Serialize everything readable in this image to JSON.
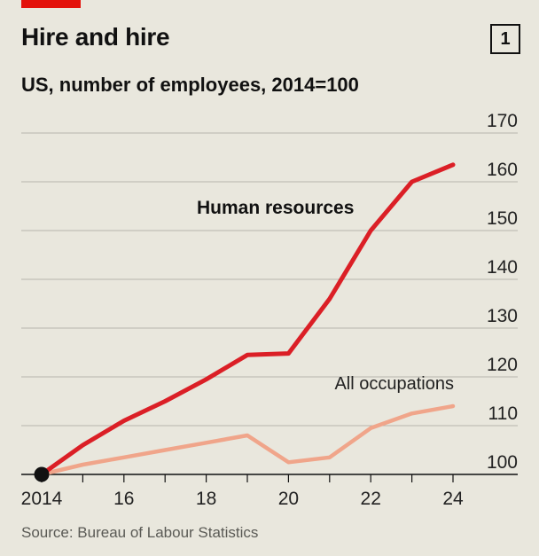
{
  "header": {
    "title": "Hire and hire",
    "chart_number": "1",
    "subtitle": "US, number of employees, 2014=100"
  },
  "footer": {
    "source": "Source: Bureau of Labour Statistics"
  },
  "colors": {
    "background": "#e9e7dd",
    "accent": "#e3120b",
    "human_resources": "#db1f26",
    "all_occupations": "#f0a58a",
    "gridline": "#b8b6ad",
    "axis": "#111111",
    "marker": "#111111"
  },
  "chart_data": {
    "type": "line",
    "title": "Hire and hire",
    "subtitle": "US, number of employees, 2014=100",
    "xlabel": "",
    "ylabel": "",
    "x": [
      2014,
      2015,
      2016,
      2017,
      2018,
      2019,
      2020,
      2021,
      2022,
      2023,
      2024
    ],
    "xlim": [
      2014,
      2024
    ],
    "ylim": [
      100,
      170
    ],
    "y_ticks": [
      100,
      110,
      120,
      130,
      140,
      150,
      160,
      170
    ],
    "y_tick_labels": [
      "100",
      "110",
      "120",
      "130",
      "140",
      "150",
      "160",
      "170"
    ],
    "x_ticks": [
      2014,
      2016,
      2018,
      2020,
      2022,
      2024
    ],
    "x_tick_labels": [
      "2014",
      "16",
      "18",
      "20",
      "22",
      "24"
    ],
    "grid": true,
    "base_marker": {
      "x": 2014,
      "y": 100
    },
    "series": [
      {
        "name": "Human resources",
        "values": [
          100,
          106,
          111,
          115,
          119.5,
          124.5,
          124.8,
          136,
          150,
          160,
          163.5
        ]
      },
      {
        "name": "All occupations",
        "values": [
          100,
          102,
          103.5,
          105,
          106.5,
          108,
          102.5,
          103.5,
          109.5,
          112.5,
          114
        ]
      }
    ]
  }
}
